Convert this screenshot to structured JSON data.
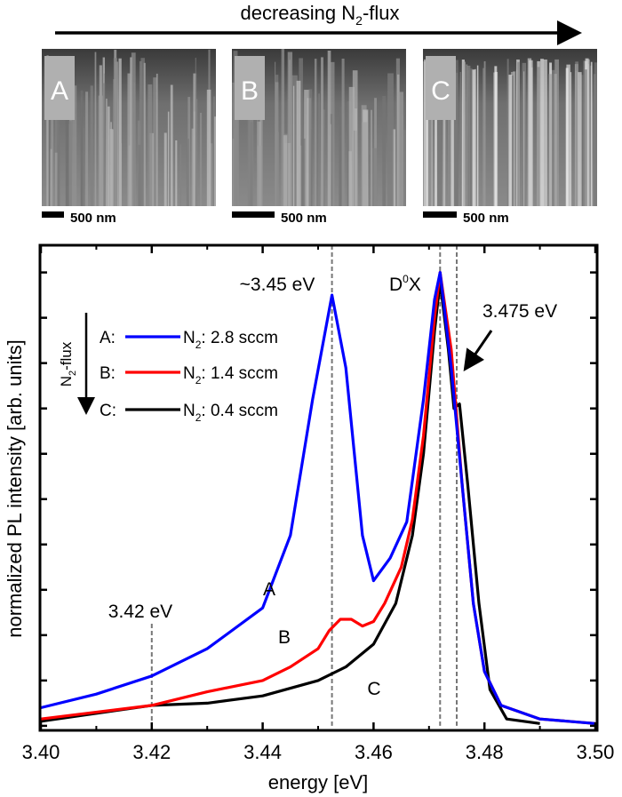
{
  "header": {
    "title_prefix": "decreasing N",
    "title_sub": "2",
    "title_suffix": "-flux"
  },
  "sem": {
    "panels": [
      {
        "label": "A",
        "scale_text": "500 nm"
      },
      {
        "label": "B",
        "scale_text": "500 nm"
      },
      {
        "label": "C",
        "scale_text": "500 nm"
      }
    ]
  },
  "chart_data": {
    "type": "line",
    "xlabel": "energy [eV]",
    "ylabel": "normalized PL intensity [arb. units]",
    "xlim": [
      3.4,
      3.5
    ],
    "ylim": [
      -0.01,
      1.06
    ],
    "xticks": [
      "3.40",
      "3.42",
      "3.44",
      "3.46",
      "3.48",
      "3.50"
    ],
    "yticks_unlabeled": [
      0,
      0.1,
      0.2,
      0.3,
      0.4,
      0.5,
      0.6,
      0.7,
      0.8,
      0.9,
      1.0
    ],
    "grid": false,
    "legend": {
      "placement": "top-left",
      "arrow_label_prefix": "N",
      "arrow_label_sub": "2",
      "arrow_label_suffix": "-flux"
    },
    "series": [
      {
        "key": "A:",
        "name_prefix": "N",
        "name_sub": "2",
        "name_suffix": ": 2.8 sccm",
        "label": "A",
        "color": "#0000ff",
        "x": [
          3.4,
          3.41,
          3.42,
          3.43,
          3.44,
          3.445,
          3.449,
          3.4525,
          3.455,
          3.458,
          3.46,
          3.463,
          3.466,
          3.469,
          3.471,
          3.472,
          3.474,
          3.476,
          3.478,
          3.48,
          3.483,
          3.49,
          3.5
        ],
        "y": [
          0.04,
          0.07,
          0.11,
          0.17,
          0.26,
          0.42,
          0.72,
          0.95,
          0.79,
          0.42,
          0.32,
          0.37,
          0.45,
          0.72,
          0.94,
          1.0,
          0.79,
          0.53,
          0.27,
          0.12,
          0.045,
          0.015,
          0.005
        ]
      },
      {
        "key": "B:",
        "name_prefix": "N",
        "name_sub": "2",
        "name_suffix": ": 1.4 sccm",
        "label": "B",
        "color": "#ff0000",
        "x": [
          3.4,
          3.42,
          3.43,
          3.44,
          3.445,
          3.45,
          3.452,
          3.454,
          3.456,
          3.458,
          3.46,
          3.462,
          3.465,
          3.467,
          3.469,
          3.471,
          3.472,
          3.474,
          3.476,
          3.478,
          3.48,
          3.483,
          3.49,
          3.5
        ],
        "y": [
          0.015,
          0.045,
          0.075,
          0.1,
          0.13,
          0.17,
          0.21,
          0.235,
          0.235,
          0.22,
          0.23,
          0.27,
          0.35,
          0.455,
          0.64,
          0.9,
          1.0,
          0.83,
          0.53,
          0.27,
          0.12,
          0.045,
          0.015,
          0.005
        ]
      },
      {
        "key": "C:",
        "name_prefix": "N",
        "name_sub": "2",
        "name_suffix": ": 0.4 sccm",
        "label": "C",
        "color": "#000000",
        "x": [
          3.4,
          3.42,
          3.43,
          3.44,
          3.45,
          3.455,
          3.46,
          3.464,
          3.467,
          3.469,
          3.471,
          3.472,
          3.4735,
          3.4745,
          3.4755,
          3.477,
          3.479,
          3.481,
          3.484,
          3.49
        ],
        "y": [
          0.01,
          0.045,
          0.05,
          0.066,
          0.1,
          0.13,
          0.18,
          0.27,
          0.42,
          0.6,
          0.87,
          0.98,
          0.83,
          0.7,
          0.71,
          0.53,
          0.27,
          0.08,
          0.015,
          0.005
        ]
      }
    ],
    "reference_lines_x": [
      3.42,
      3.4525,
      3.472,
      3.475
    ],
    "annotations": {
      "peak_345": "~3.45 eV",
      "d0x_prefix": "D",
      "d0x_sup": "0",
      "d0x_suffix": "X",
      "shoulder": "3.475 eV",
      "low": "3.42 eV"
    }
  }
}
